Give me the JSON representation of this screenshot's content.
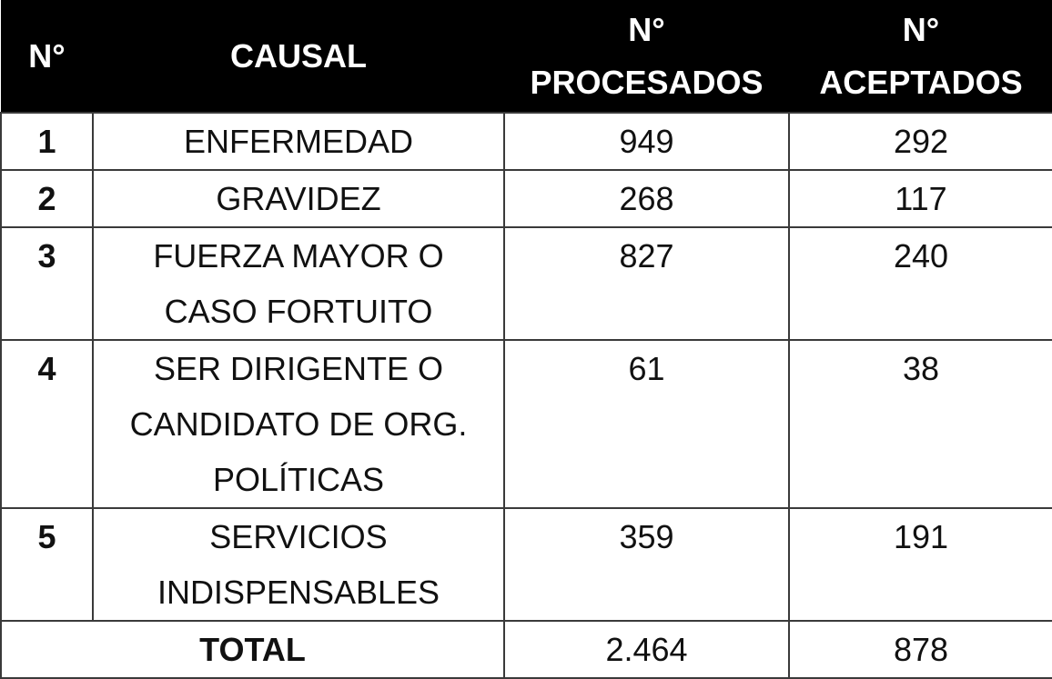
{
  "table": {
    "headers": {
      "num": "N°",
      "causal": "CAUSAL",
      "procesados_line1": "N°",
      "procesados_line2": "PROCESADOS",
      "aceptados_line1": "N°",
      "aceptados_line2": "ACEPTADOS"
    },
    "rows": [
      {
        "num": "1",
        "causal_lines": [
          "ENFERMEDAD"
        ],
        "procesados": "949",
        "aceptados": "292"
      },
      {
        "num": "2",
        "causal_lines": [
          "GRAVIDEZ"
        ],
        "procesados": "268",
        "aceptados": "117"
      },
      {
        "num": "3",
        "causal_lines": [
          "FUERZA MAYOR O",
          "CASO FORTUITO"
        ],
        "procesados": "827",
        "aceptados": "240"
      },
      {
        "num": "4",
        "causal_lines": [
          "SER DIRIGENTE O",
          "CANDIDATO DE ORG.",
          "POLÍTICAS"
        ],
        "procesados": "61",
        "aceptados": "38"
      },
      {
        "num": "5",
        "causal_lines": [
          "SERVICIOS",
          "INDISPENSABLES"
        ],
        "procesados": "359",
        "aceptados": "191"
      }
    ],
    "total": {
      "label": "TOTAL",
      "procesados": "2.464",
      "aceptados": "878"
    }
  },
  "colors": {
    "header_bg": "#000000",
    "header_text": "#ffffff",
    "border": "#3a3a3a"
  }
}
